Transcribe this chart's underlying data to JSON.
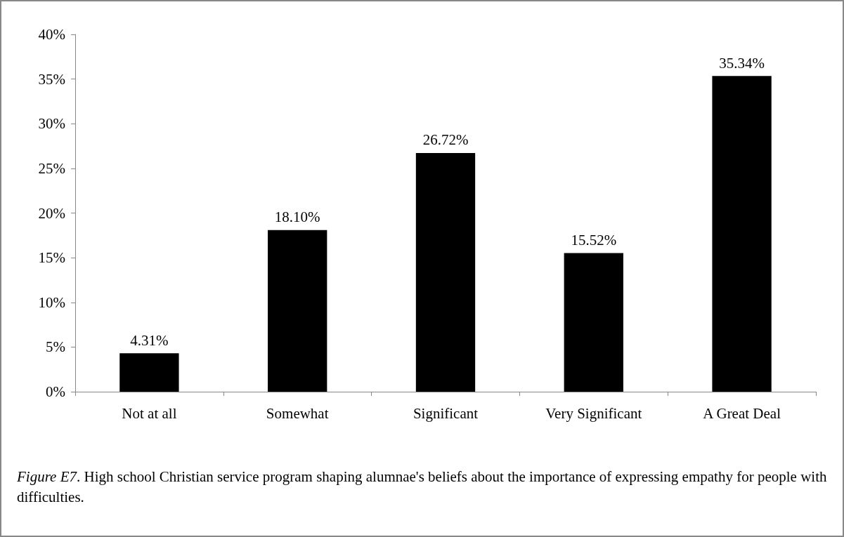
{
  "chart_data": {
    "type": "bar",
    "categories": [
      "Not at all",
      "Somewhat",
      "Significant",
      "Very Significant",
      "A Great Deal"
    ],
    "values": [
      4.31,
      18.1,
      26.72,
      15.52,
      35.34
    ],
    "value_labels": [
      "4.31%",
      "18.10%",
      "26.72%",
      "15.52%",
      "35.34%"
    ],
    "color": "#000000",
    "ylim": [
      0,
      40
    ],
    "yticks": [
      {
        "value": 0,
        "label": "0%"
      },
      {
        "value": 5,
        "label": "5%"
      },
      {
        "value": 10,
        "label": "10%"
      },
      {
        "value": 15,
        "label": "15%"
      },
      {
        "value": 20,
        "label": "20%"
      },
      {
        "value": 25,
        "label": "25%"
      },
      {
        "value": 30,
        "label": "30%"
      },
      {
        "value": 35,
        "label": "35%"
      },
      {
        "value": 40,
        "label": "40%"
      }
    ],
    "grid": false,
    "annotations": [
      "Figure E7. High school Christian service program shaping alumnae's beliefs about the importance of expressing empathy for people with difficulties."
    ]
  }
}
